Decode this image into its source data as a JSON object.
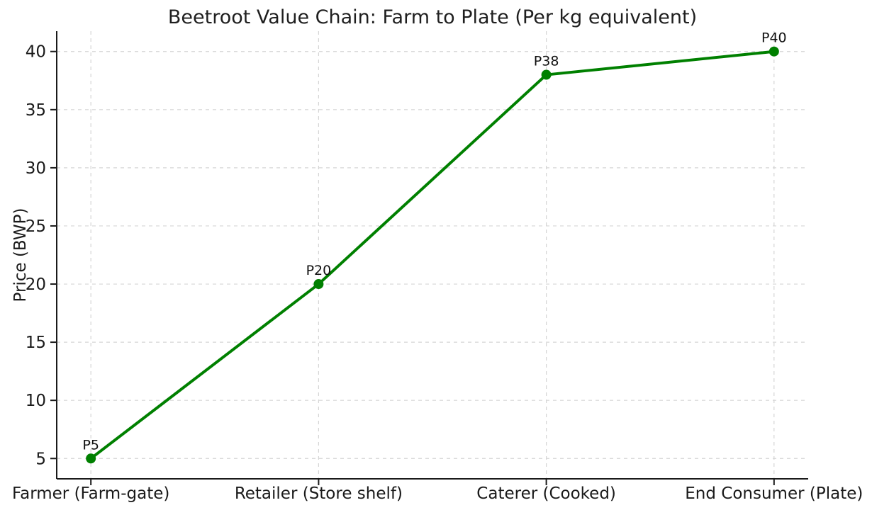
{
  "chart_data": {
    "type": "line",
    "title": "Beetroot Value Chain: Farm to Plate (Per kg equivalent)",
    "xlabel": "",
    "ylabel": "Price (BWP)",
    "categories": [
      "Farmer (Farm-gate)",
      "Retailer (Store shelf)",
      "Caterer (Cooked)",
      "End Consumer (Plate)"
    ],
    "values": [
      5,
      20,
      38,
      40
    ],
    "point_labels": [
      "P5",
      "P20",
      "P38",
      "P40"
    ],
    "yticks": [
      5,
      10,
      15,
      20,
      25,
      30,
      35,
      40
    ],
    "ylim": [
      3.25,
      41.75
    ],
    "grid": true,
    "grid_style": "dashed",
    "legend": "none",
    "line_color": "#008000",
    "marker_color": "#008000",
    "marker_shape": "circle",
    "grid_color": "#d5d5d5",
    "axis_color": "#1a1a1a",
    "text_color": "#1a1a1a",
    "background_color": "#ffffff"
  }
}
